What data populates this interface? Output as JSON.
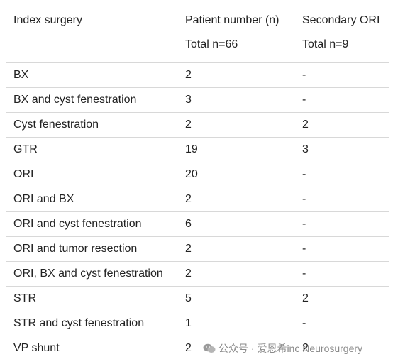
{
  "table": {
    "headers": {
      "col1": "Index surgery",
      "col2": "Patient number (n)",
      "col3": "Secondary ORI",
      "col2_sub": "Total n=66",
      "col3_sub": "Total n=9"
    },
    "rows": [
      {
        "surgery": "BX",
        "patients": "2",
        "secondary": "-"
      },
      {
        "surgery": "BX and cyst fenestration",
        "patients": "3",
        "secondary": "-"
      },
      {
        "surgery": "Cyst fenestration",
        "patients": "2",
        "secondary": "2"
      },
      {
        "surgery": "GTR",
        "patients": "19",
        "secondary": "3"
      },
      {
        "surgery": "ORI",
        "patients": "20",
        "secondary": "-"
      },
      {
        "surgery": "ORI and BX",
        "patients": "2",
        "secondary": "-"
      },
      {
        "surgery": "ORI and cyst fenestration",
        "patients": "6",
        "secondary": "-"
      },
      {
        "surgery": "ORI and tumor resection",
        "patients": "2",
        "secondary": "-"
      },
      {
        "surgery": "ORI, BX and cyst fenestration",
        "patients": "2",
        "secondary": "-"
      },
      {
        "surgery": "STR",
        "patients": "5",
        "secondary": "2"
      },
      {
        "surgery": "STR and cyst fenestration",
        "patients": "1",
        "secondary": "-"
      },
      {
        "surgery": "VP shunt",
        "patients": "2",
        "secondary": "2"
      }
    ]
  },
  "watermark": {
    "text": "公众号 · 爱恩希inc Neurosurgery",
    "icon": "wechat-icon"
  }
}
